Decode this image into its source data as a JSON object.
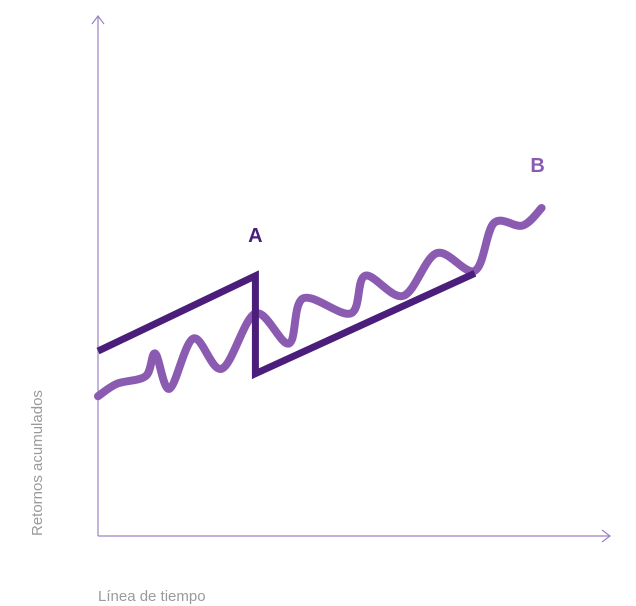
{
  "chart_data": {
    "type": "line",
    "title": "",
    "xlabel": "Línea de tiempo",
    "ylabel": "Retornos acumulados",
    "xlim": [
      0,
      100
    ],
    "ylim": [
      0,
      100
    ],
    "grid": false,
    "legend": "none",
    "series": [
      {
        "color": "#4a1e7a",
        "values": [
          {
            "x": 0,
            "y": 43
          },
          {
            "x": 33,
            "y": 73
          },
          {
            "x": 33,
            "y": 34
          },
          {
            "x": 79,
            "y": 74
          }
        ]
      },
      {
        "color": "#8a5bb0",
        "values": [
          {
            "x": 0,
            "y": 25
          },
          {
            "x": 4,
            "y": 30
          },
          {
            "x": 10,
            "y": 33
          },
          {
            "x": 12,
            "y": 42
          },
          {
            "x": 15,
            "y": 28
          },
          {
            "x": 20,
            "y": 48
          },
          {
            "x": 26,
            "y": 36
          },
          {
            "x": 33,
            "y": 58
          },
          {
            "x": 40,
            "y": 46
          },
          {
            "x": 43,
            "y": 64
          },
          {
            "x": 53,
            "y": 58
          },
          {
            "x": 56,
            "y": 73
          },
          {
            "x": 64,
            "y": 65
          },
          {
            "x": 71,
            "y": 82
          },
          {
            "x": 79,
            "y": 75
          },
          {
            "x": 83,
            "y": 94
          },
          {
            "x": 89,
            "y": 93
          },
          {
            "x": 93,
            "y": 100
          }
        ]
      }
    ],
    "annotations": [
      {
        "text": "A",
        "x": 33,
        "y": 73,
        "color": "#4a1e7a"
      },
      {
        "text": "B",
        "x": 93,
        "y": 100,
        "color": "#8a5bb0"
      }
    ],
    "axis_color": "#9b82c4"
  }
}
